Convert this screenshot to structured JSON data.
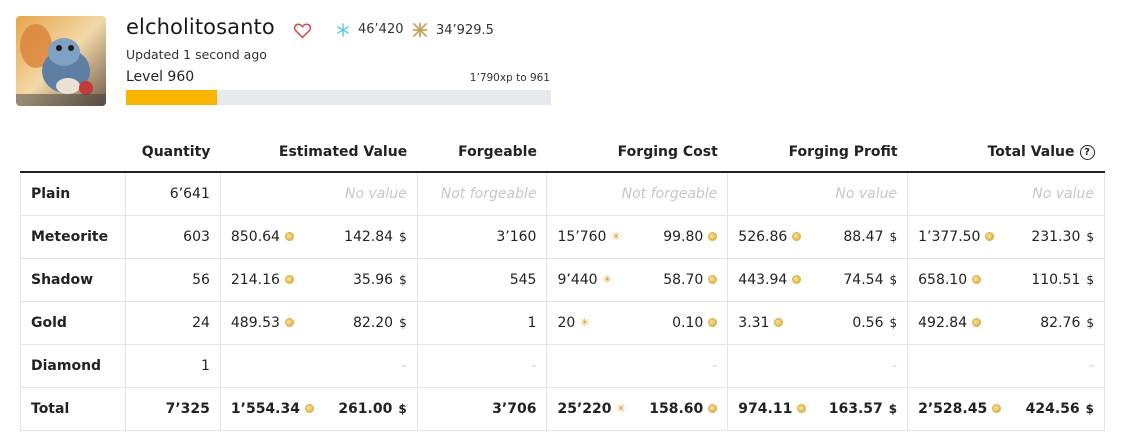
{
  "profile": {
    "username": "elcholitosanto",
    "stat_snow": "46’420",
    "stat_star": "34’929.5",
    "updated": "Updated 1 second ago",
    "level": "Level 960",
    "xp_to_next": "1’790xp to 961",
    "level_progress": 0.215
  },
  "colors": {
    "progress_fill": "#f7b500",
    "progress_track": "#e6e9ee",
    "heart": "#e0454f",
    "snow": "#5cc6e0",
    "star": "#c9a25a"
  },
  "table": {
    "headers": {
      "row": "",
      "quantity": "Quantity",
      "estimated_value": "Estimated Value",
      "forgeable": "Forgeable",
      "forging_cost": "Forging Cost",
      "forging_profit": "Forging Profit",
      "total_value": "Total Value"
    },
    "rows": [
      {
        "name": "Plain",
        "quantity": "6’641",
        "no_value": "No value",
        "not_forgeable": "Not forgeable"
      },
      {
        "name": "Meteorite",
        "quantity": "603",
        "est_coin": "850.64",
        "est_usd": "142.84",
        "forgeable": "3’160",
        "cost_spark": "15’760",
        "cost_coin": "99.80",
        "profit_coin": "526.86",
        "profit_usd": "88.47",
        "total_coin": "1’377.50",
        "total_usd": "231.30"
      },
      {
        "name": "Shadow",
        "quantity": "56",
        "est_coin": "214.16",
        "est_usd": "35.96",
        "forgeable": "545",
        "cost_spark": "9’440",
        "cost_coin": "58.70",
        "profit_coin": "443.94",
        "profit_usd": "74.54",
        "total_coin": "658.10",
        "total_usd": "110.51"
      },
      {
        "name": "Gold",
        "quantity": "24",
        "est_coin": "489.53",
        "est_usd": "82.20",
        "forgeable": "1",
        "cost_spark": "20",
        "cost_coin": "0.10",
        "profit_coin": "3.31",
        "profit_usd": "0.56",
        "total_coin": "492.84",
        "total_usd": "82.76"
      },
      {
        "name": "Diamond",
        "quantity": "1",
        "dash": "-"
      },
      {
        "name": "Total",
        "quantity": "7’325",
        "est_coin": "1’554.34",
        "est_usd": "261.00",
        "forgeable": "3’706",
        "cost_spark": "25’220",
        "cost_coin": "158.60",
        "profit_coin": "974.11",
        "profit_usd": "163.57",
        "total_coin": "2’528.45",
        "total_usd": "424.56"
      }
    ],
    "currency_symbol": "$"
  }
}
